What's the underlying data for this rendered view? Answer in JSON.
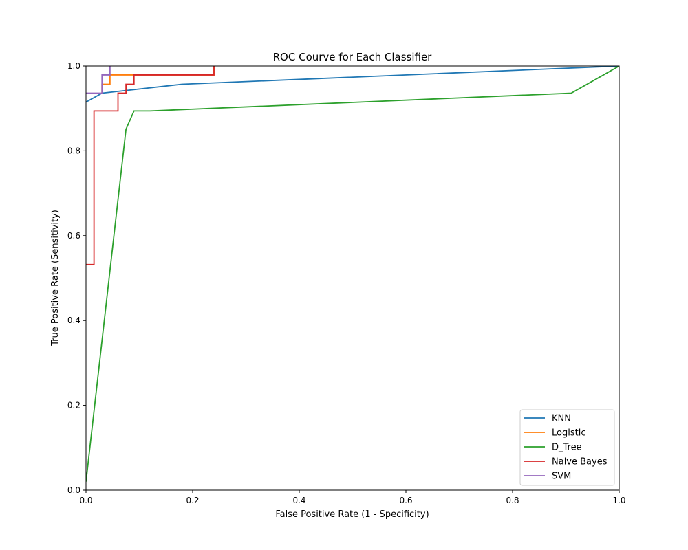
{
  "chart_data": {
    "type": "line",
    "title": "ROC Courve for Each Classifier",
    "xlabel": "False Positive Rate (1 - Specificity)",
    "ylabel": "True Positive Rate (Sensitivity)",
    "xlim": [
      0,
      1
    ],
    "ylim": [
      0,
      1
    ],
    "xticks": [
      "0.0",
      "0.2",
      "0.4",
      "0.6",
      "0.8",
      "1.0"
    ],
    "yticks": [
      "0.0",
      "0.2",
      "0.4",
      "0.6",
      "0.8",
      "1.0"
    ],
    "grid": false,
    "legend_position": "bottom-right",
    "series": [
      {
        "name": "KNN",
        "color": "#1f77b4",
        "x": [
          0,
          0.03,
          0.18,
          1.0
        ],
        "y": [
          0.915,
          0.936,
          0.957,
          1.0
        ]
      },
      {
        "name": "Logistic",
        "color": "#ff7f0e",
        "x": [
          0.03,
          0.03,
          0.045,
          0.045,
          0.09,
          0.09,
          0.24,
          0.24
        ],
        "y": [
          0.936,
          0.957,
          0.957,
          0.979,
          0.979,
          0.979,
          0.979,
          1.0
        ]
      },
      {
        "name": "D_Tree",
        "color": "#2ca02c",
        "x": [
          0,
          0.075,
          0.09,
          0.12,
          0.91,
          1.0
        ],
        "y": [
          0.02,
          0.851,
          0.894,
          0.894,
          0.936,
          1.0
        ]
      },
      {
        "name": "Naive Bayes",
        "color": "#d62728",
        "x": [
          0,
          0.015,
          0.015,
          0.06,
          0.06,
          0.075,
          0.075,
          0.09,
          0.09,
          0.24,
          0.24
        ],
        "y": [
          0.532,
          0.532,
          0.894,
          0.894,
          0.936,
          0.936,
          0.957,
          0.957,
          0.979,
          0.979,
          1.0
        ]
      },
      {
        "name": "SVM",
        "color": "#9467bd",
        "x": [
          0,
          0.03,
          0.03,
          0.045,
          0.045
        ],
        "y": [
          0.936,
          0.936,
          0.979,
          0.979,
          1.0
        ]
      }
    ]
  }
}
